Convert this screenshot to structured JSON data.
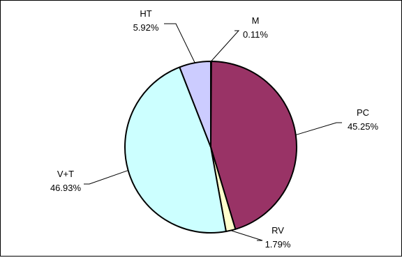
{
  "chart_data": {
    "type": "pie",
    "title": "",
    "start_angle_deg": 0,
    "direction": "clockwise",
    "slices": [
      {
        "label": "M",
        "value": 0.11,
        "value_label": "0.11%",
        "color": "#FFFFFF"
      },
      {
        "label": "PC",
        "value": 45.25,
        "value_label": "45.25%",
        "color": "#993366"
      },
      {
        "label": "RV",
        "value": 1.79,
        "value_label": "1.79%",
        "color": "#FFFFCC"
      },
      {
        "label": "V+T",
        "value": 46.93,
        "value_label": "46.93%",
        "color": "#CCFFFF"
      },
      {
        "label": "HT",
        "value": 5.92,
        "value_label": "5.92%",
        "color": "#CCCCFF"
      }
    ],
    "outline_color": "#000000",
    "legend": "none"
  }
}
